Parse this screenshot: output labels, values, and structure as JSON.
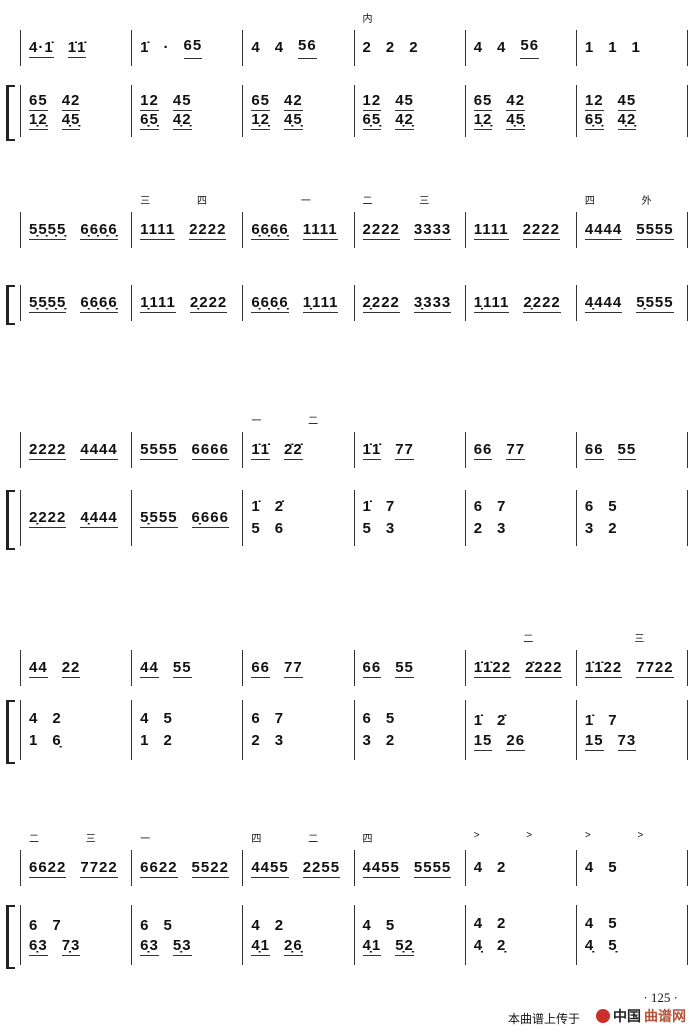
{
  "systems": [
    {
      "top": {
        "measures": [
          "4·1̇ 1̇1̇",
          "1̇ · 65",
          "4 4 56",
          "2 2 2",
          "4 4 56",
          "1 1 1"
        ],
        "annotations": [
          "",
          "",
          "",
          "内",
          "",
          ""
        ]
      },
      "bottom": {
        "measures": [
          [
            "65 42",
            "1̣2̣ 4̣5̣"
          ],
          [
            "12 45",
            "6̣5̣ 4̣2̣"
          ],
          [
            "65 42",
            "1̣2̣ 4̣5̣"
          ],
          [
            "12 45",
            "6̣5̣ 4̣2̣"
          ],
          [
            "65 42",
            "1̣2̣ 4̣5̣"
          ],
          [
            "12 45",
            "6̣5̣ 4̣2̣"
          ]
        ]
      }
    },
    {
      "top": {
        "measures": [
          "5̣5̣5̣5̣ 6̣6̣6̣6̣",
          "1111 2222",
          "6̣6̣6̣6̣ 1111",
          "2222 3333",
          "1111 2222",
          "4444 5555"
        ],
        "annotations": [
          "",
          "三 四",
          "  一",
          "二 三",
          "",
          "四 外"
        ]
      },
      "bottom": {
        "measures": [
          [
            "5̣5̣5̣5̣ 6̣6̣6̣6̣"
          ],
          [
            "1̣111 2̣222"
          ],
          [
            "6̣6̣6̣6̣ 1̣111"
          ],
          [
            "2̣222 3̣333"
          ],
          [
            "1̣111 2̣222"
          ],
          [
            "4̣444 5̣555"
          ]
        ]
      }
    },
    {
      "top": {
        "measures": [
          "2222 4444",
          "5555 6666",
          "1̇1̇ 2̇2̇",
          "1̇1̇ 77",
          "66 77",
          "66 55"
        ],
        "annotations": [
          "",
          "",
          "一 二",
          "",
          "",
          ""
        ]
      },
      "bottom": {
        "measures": [
          [
            "2̣222 4̣444"
          ],
          [
            "5̣555 6̣666"
          ],
          [
            "1̇ 2̇",
            "5 6"
          ],
          [
            "1̇ 7",
            "5 3"
          ],
          [
            "6 7",
            "2 3"
          ],
          [
            "6 5",
            "3 2"
          ]
        ]
      }
    },
    {
      "top": {
        "measures": [
          "44 22",
          "44 55",
          "66 77",
          "66 55",
          "1̇1̇22 2̇222",
          "1̇1̇22 7722"
        ],
        "annotations": [
          "",
          "",
          "",
          "",
          "  二",
          "  三"
        ]
      },
      "bottom": {
        "measures": [
          [
            "4 2",
            "1 6̣"
          ],
          [
            "4 5",
            "1 2"
          ],
          [
            "6 7",
            "2 3"
          ],
          [
            "6 5",
            "3 2"
          ],
          [
            "1̇ 2̇",
            "15 26"
          ],
          [
            "1̇ 7",
            "15 73"
          ]
        ]
      }
    },
    {
      "top": {
        "measures": [
          "6622 7722",
          "6622 5522",
          "4455 2255",
          "4455 5555",
          "4 2",
          "4 5"
        ],
        "annotations": [
          "二 三",
          "一",
          "四 二",
          "四",
          "> >",
          "> >"
        ]
      },
      "bottom": {
        "measures": [
          [
            "6 7",
            "6̣3 7̣3"
          ],
          [
            "6 5",
            "6̣3 5̣3"
          ],
          [
            "4 2",
            "4̣1 2̣6̣"
          ],
          [
            "4 5",
            "4̣1 5̣2̣"
          ],
          [
            "4 2",
            "4̣ 2̣"
          ],
          [
            "4 5",
            "4̣ 5̣"
          ]
        ]
      }
    }
  ],
  "footer": {
    "page_number": "· 125 ·",
    "upload_text": "本曲谱上传于",
    "logo_text_a": "中国",
    "logo_text_b": "曲谱网"
  }
}
